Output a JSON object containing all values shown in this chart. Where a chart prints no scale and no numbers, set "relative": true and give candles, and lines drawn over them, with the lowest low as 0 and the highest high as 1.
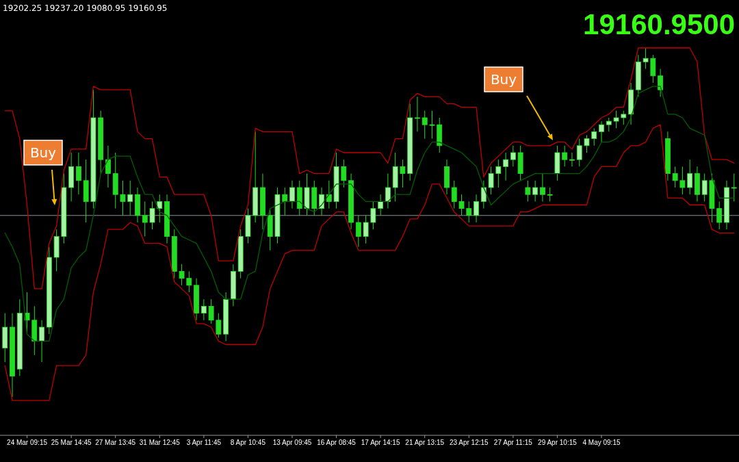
{
  "chart_data": {
    "type": "candlestick",
    "title": "19160.9500",
    "relative": true,
    "tick_labels": "x",
    "color": "#22dd22",
    "annotations": [
      "19202.25 19237.20 19080.95 19160.95",
      "Buy",
      "Buy"
    ],
    "categories": [
      null,
      null,
      null,
      "24 Mar 09:15",
      null,
      null,
      null,
      null,
      null,
      "25 Mar 14:45",
      null,
      null,
      null,
      null,
      null,
      "27 Mar 13:45",
      null,
      null,
      null,
      null,
      null,
      "31 Mar 12:45",
      null,
      null,
      null,
      null,
      null,
      "3 Apr 11:45",
      null,
      null,
      null,
      null,
      null,
      "8 Apr 10:45",
      null,
      null,
      null,
      null,
      null,
      "13 Apr 09:45",
      null,
      null,
      null,
      null,
      null,
      "16 Apr 08:45",
      null,
      null,
      null,
      null,
      null,
      "17 Apr 14:15",
      null,
      null,
      null,
      null,
      null,
      "21 Apr 13:15",
      null,
      null,
      null,
      null,
      null,
      "23 Apr 12:15",
      null,
      null,
      null,
      null,
      null,
      "27 Apr 11:15",
      null,
      null,
      null,
      null,
      null,
      "29 Apr 10:15",
      null,
      null,
      null,
      null,
      null,
      "4 May 09:15",
      null,
      null,
      null,
      null,
      null,
      null,
      null,
      null,
      null,
      null,
      null,
      null,
      null,
      null,
      null,
      null,
      null,
      null
    ],
    "ohlc": [
      [
        0.14,
        0.24,
        0.1,
        0.2
      ],
      [
        0.2,
        0.24,
        0.0,
        0.06
      ],
      [
        0.08,
        0.28,
        0.06,
        0.24
      ],
      [
        0.24,
        0.3,
        0.18,
        0.22
      ],
      [
        0.22,
        0.26,
        0.12,
        0.16
      ],
      [
        0.16,
        0.22,
        0.1,
        0.2
      ],
      [
        0.2,
        0.43,
        0.18,
        0.4
      ],
      [
        0.4,
        0.48,
        0.36,
        0.46
      ],
      [
        0.46,
        0.64,
        0.44,
        0.6
      ],
      [
        0.6,
        0.7,
        0.56,
        0.66
      ],
      [
        0.66,
        0.7,
        0.58,
        0.62
      ],
      [
        0.62,
        0.68,
        0.5,
        0.56
      ],
      [
        0.56,
        0.88,
        0.54,
        0.8
      ],
      [
        0.8,
        0.82,
        0.64,
        0.68
      ],
      [
        0.68,
        0.72,
        0.6,
        0.64
      ],
      [
        0.64,
        0.7,
        0.54,
        0.58
      ],
      [
        0.58,
        0.62,
        0.52,
        0.56
      ],
      [
        0.56,
        0.62,
        0.52,
        0.58
      ],
      [
        0.58,
        0.6,
        0.5,
        0.52
      ],
      [
        0.52,
        0.56,
        0.46,
        0.5
      ],
      [
        0.5,
        0.56,
        0.48,
        0.54
      ],
      [
        0.54,
        0.58,
        0.5,
        0.56
      ],
      [
        0.56,
        0.58,
        0.44,
        0.46
      ],
      [
        0.46,
        0.48,
        0.34,
        0.36
      ],
      [
        0.36,
        0.38,
        0.32,
        0.34
      ],
      [
        0.34,
        0.36,
        0.3,
        0.32
      ],
      [
        0.32,
        0.34,
        0.22,
        0.24
      ],
      [
        0.24,
        0.28,
        0.22,
        0.26
      ],
      [
        0.26,
        0.28,
        0.21,
        0.22
      ],
      [
        0.22,
        0.24,
        0.17,
        0.18
      ],
      [
        0.18,
        0.3,
        0.16,
        0.28
      ],
      [
        0.28,
        0.38,
        0.26,
        0.36
      ],
      [
        0.36,
        0.48,
        0.34,
        0.46
      ],
      [
        0.46,
        0.54,
        0.44,
        0.52
      ],
      [
        0.52,
        0.76,
        0.5,
        0.6
      ],
      [
        0.6,
        0.64,
        0.48,
        0.52
      ],
      [
        0.52,
        0.54,
        0.42,
        0.46
      ],
      [
        0.46,
        0.6,
        0.44,
        0.58
      ],
      [
        0.58,
        0.6,
        0.52,
        0.56
      ],
      [
        0.56,
        0.62,
        0.54,
        0.6
      ],
      [
        0.6,
        0.62,
        0.52,
        0.54
      ],
      [
        0.54,
        0.64,
        0.52,
        0.6
      ],
      [
        0.6,
        0.62,
        0.52,
        0.54
      ],
      [
        0.54,
        0.6,
        0.52,
        0.58
      ],
      [
        0.58,
        0.62,
        0.54,
        0.56
      ],
      [
        0.56,
        0.7,
        0.54,
        0.66
      ],
      [
        0.66,
        0.68,
        0.6,
        0.62
      ],
      [
        0.62,
        0.64,
        0.48,
        0.5
      ],
      [
        0.5,
        0.52,
        0.43,
        0.46
      ],
      [
        0.46,
        0.52,
        0.44,
        0.5
      ],
      [
        0.5,
        0.56,
        0.48,
        0.54
      ],
      [
        0.54,
        0.58,
        0.52,
        0.56
      ],
      [
        0.56,
        0.64,
        0.54,
        0.6
      ],
      [
        0.6,
        0.7,
        0.56,
        0.66
      ],
      [
        0.66,
        0.68,
        0.6,
        0.64
      ],
      [
        0.64,
        0.84,
        0.62,
        0.8
      ],
      [
        0.8,
        0.86,
        0.76,
        0.8
      ],
      [
        0.8,
        0.82,
        0.74,
        0.78
      ],
      [
        0.78,
        0.82,
        0.74,
        0.78
      ],
      [
        0.78,
        0.8,
        0.7,
        0.72
      ],
      [
        0.66,
        0.68,
        0.58,
        0.6
      ],
      [
        0.6,
        0.62,
        0.54,
        0.56
      ],
      [
        0.56,
        0.58,
        0.52,
        0.54
      ],
      [
        0.54,
        0.56,
        0.5,
        0.52
      ],
      [
        0.52,
        0.58,
        0.5,
        0.56
      ],
      [
        0.56,
        0.62,
        0.54,
        0.6
      ],
      [
        0.6,
        0.66,
        0.58,
        0.64
      ],
      [
        0.64,
        0.68,
        0.6,
        0.66
      ],
      [
        0.66,
        0.7,
        0.62,
        0.68
      ],
      [
        0.68,
        0.72,
        0.66,
        0.7
      ],
      [
        0.7,
        0.72,
        0.62,
        0.64
      ],
      [
        0.6,
        0.62,
        0.56,
        0.58
      ],
      [
        0.58,
        0.62,
        0.56,
        0.6
      ],
      [
        0.6,
        0.64,
        0.56,
        0.58
      ],
      [
        0.58,
        0.6,
        0.56,
        0.58
      ],
      [
        0.64,
        0.72,
        0.62,
        0.7
      ],
      [
        0.7,
        0.72,
        0.66,
        0.68
      ],
      [
        0.68,
        0.7,
        0.66,
        0.68
      ],
      [
        0.68,
        0.74,
        0.66,
        0.72
      ],
      [
        0.72,
        0.75,
        0.7,
        0.74
      ],
      [
        0.74,
        0.77,
        0.72,
        0.76
      ],
      [
        0.76,
        0.79,
        0.73,
        0.78
      ],
      [
        0.78,
        0.8,
        0.76,
        0.79
      ],
      [
        0.79,
        0.82,
        0.77,
        0.8
      ],
      [
        0.8,
        0.82,
        0.78,
        0.81
      ],
      [
        0.81,
        0.9,
        0.78,
        0.88
      ],
      [
        0.88,
        0.98,
        0.86,
        0.96
      ],
      [
        0.96,
        1.0,
        0.94,
        0.97
      ],
      [
        0.97,
        0.98,
        0.9,
        0.92
      ],
      [
        0.92,
        0.94,
        0.86,
        0.88
      ],
      [
        0.74,
        0.76,
        0.62,
        0.64
      ],
      [
        0.64,
        0.66,
        0.6,
        0.62
      ],
      [
        0.62,
        0.66,
        0.58,
        0.6
      ],
      [
        0.6,
        0.68,
        0.58,
        0.64
      ],
      [
        0.64,
        0.66,
        0.56,
        0.58
      ],
      [
        0.58,
        0.64,
        0.56,
        0.62
      ],
      [
        0.62,
        0.64,
        0.5,
        0.54
      ],
      [
        0.54,
        0.56,
        0.48,
        0.5
      ],
      [
        0.5,
        0.62,
        0.48,
        0.6
      ],
      [
        0.6,
        0.64,
        0.56,
        0.6
      ]
    ],
    "series": [
      {
        "type": "line",
        "color": "#c00000",
        "values": [
          0.82,
          0.82,
          0.74,
          0.55,
          0.31,
          0.31,
          0.44,
          0.49,
          0.65,
          0.71,
          0.71,
          0.71,
          0.89,
          0.88,
          0.88,
          0.88,
          0.88,
          0.88,
          0.76,
          0.74,
          0.74,
          0.63,
          0.63,
          0.58,
          0.58,
          0.58,
          0.58,
          0.58,
          0.52,
          0.39,
          0.39,
          0.39,
          0.49,
          0.55,
          0.77,
          0.76,
          0.76,
          0.76,
          0.76,
          0.76,
          0.64,
          0.65,
          0.64,
          0.64,
          0.64,
          0.71,
          0.7,
          0.7,
          0.7,
          0.7,
          0.7,
          0.7,
          0.67,
          0.74,
          0.74,
          0.85,
          0.87,
          0.86,
          0.86,
          0.86,
          0.84,
          0.84,
          0.83,
          0.83,
          0.83,
          0.63,
          0.67,
          0.69,
          0.71,
          0.73,
          0.73,
          0.72,
          0.72,
          0.72,
          0.72,
          0.73,
          0.73,
          0.71,
          0.75,
          0.76,
          0.78,
          0.8,
          0.81,
          0.83,
          0.83,
          0.91,
          1.0,
          1.0,
          1.0,
          1.0,
          1.0,
          1.0,
          1.0,
          1.0,
          0.96,
          0.75,
          0.68,
          0.68,
          0.68,
          0.67
        ]
      },
      {
        "type": "line",
        "color": "#005f00",
        "values": [
          0.47,
          0.43,
          0.38,
          0.18,
          0.16,
          0.16,
          0.16,
          0.25,
          0.28,
          0.37,
          0.4,
          0.42,
          0.52,
          0.64,
          0.68,
          0.69,
          0.69,
          0.69,
          0.63,
          0.58,
          0.58,
          0.53,
          0.52,
          0.49,
          0.46,
          0.45,
          0.44,
          0.4,
          0.36,
          0.3,
          0.28,
          0.28,
          0.28,
          0.35,
          0.36,
          0.47,
          0.54,
          0.55,
          0.56,
          0.56,
          0.56,
          0.54,
          0.53,
          0.55,
          0.58,
          0.61,
          0.61,
          0.61,
          0.58,
          0.56,
          0.56,
          0.56,
          0.56,
          0.58,
          0.58,
          0.58,
          0.65,
          0.7,
          0.73,
          0.73,
          0.72,
          0.71,
          0.7,
          0.68,
          0.66,
          0.6,
          0.55,
          0.57,
          0.59,
          0.61,
          0.62,
          0.63,
          0.64,
          0.64,
          0.64,
          0.64,
          0.64,
          0.64,
          0.64,
          0.66,
          0.69,
          0.73,
          0.73,
          0.74,
          0.76,
          0.8,
          0.87,
          0.88,
          0.89,
          0.89,
          0.81,
          0.81,
          0.8,
          0.77,
          0.76,
          0.75,
          0.63,
          0.57,
          0.57,
          0.57
        ]
      },
      {
        "type": "line",
        "color": "#c00000",
        "values": [
          0.09,
          -0.01,
          -0.01,
          -0.01,
          -0.01,
          -0.01,
          -0.01,
          0.09,
          0.09,
          0.09,
          0.09,
          0.12,
          0.3,
          0.38,
          0.48,
          0.48,
          0.48,
          0.5,
          0.49,
          0.44,
          0.44,
          0.44,
          0.43,
          0.33,
          0.31,
          0.29,
          0.21,
          0.21,
          0.2,
          0.16,
          0.15,
          0.15,
          0.15,
          0.15,
          0.15,
          0.2,
          0.31,
          0.36,
          0.41,
          0.42,
          0.42,
          0.42,
          0.42,
          0.49,
          0.51,
          0.53,
          0.53,
          0.47,
          0.42,
          0.42,
          0.42,
          0.42,
          0.42,
          0.42,
          0.46,
          0.51,
          0.51,
          0.55,
          0.61,
          0.61,
          0.57,
          0.53,
          0.51,
          0.49,
          0.49,
          0.49,
          0.49,
          0.49,
          0.49,
          0.49,
          0.53,
          0.53,
          0.54,
          0.55,
          0.55,
          0.55,
          0.55,
          0.55,
          0.55,
          0.55,
          0.63,
          0.66,
          0.66,
          0.66,
          0.7,
          0.72,
          0.72,
          0.73,
          0.77,
          0.78,
          0.57,
          0.57,
          0.57,
          0.55,
          0.55,
          0.55,
          0.48,
          0.47,
          0.47,
          0.47
        ]
      }
    ],
    "ref_lines": [
      {
        "axis": "y",
        "value": 0.52,
        "color": "#8a929c"
      }
    ]
  }
}
